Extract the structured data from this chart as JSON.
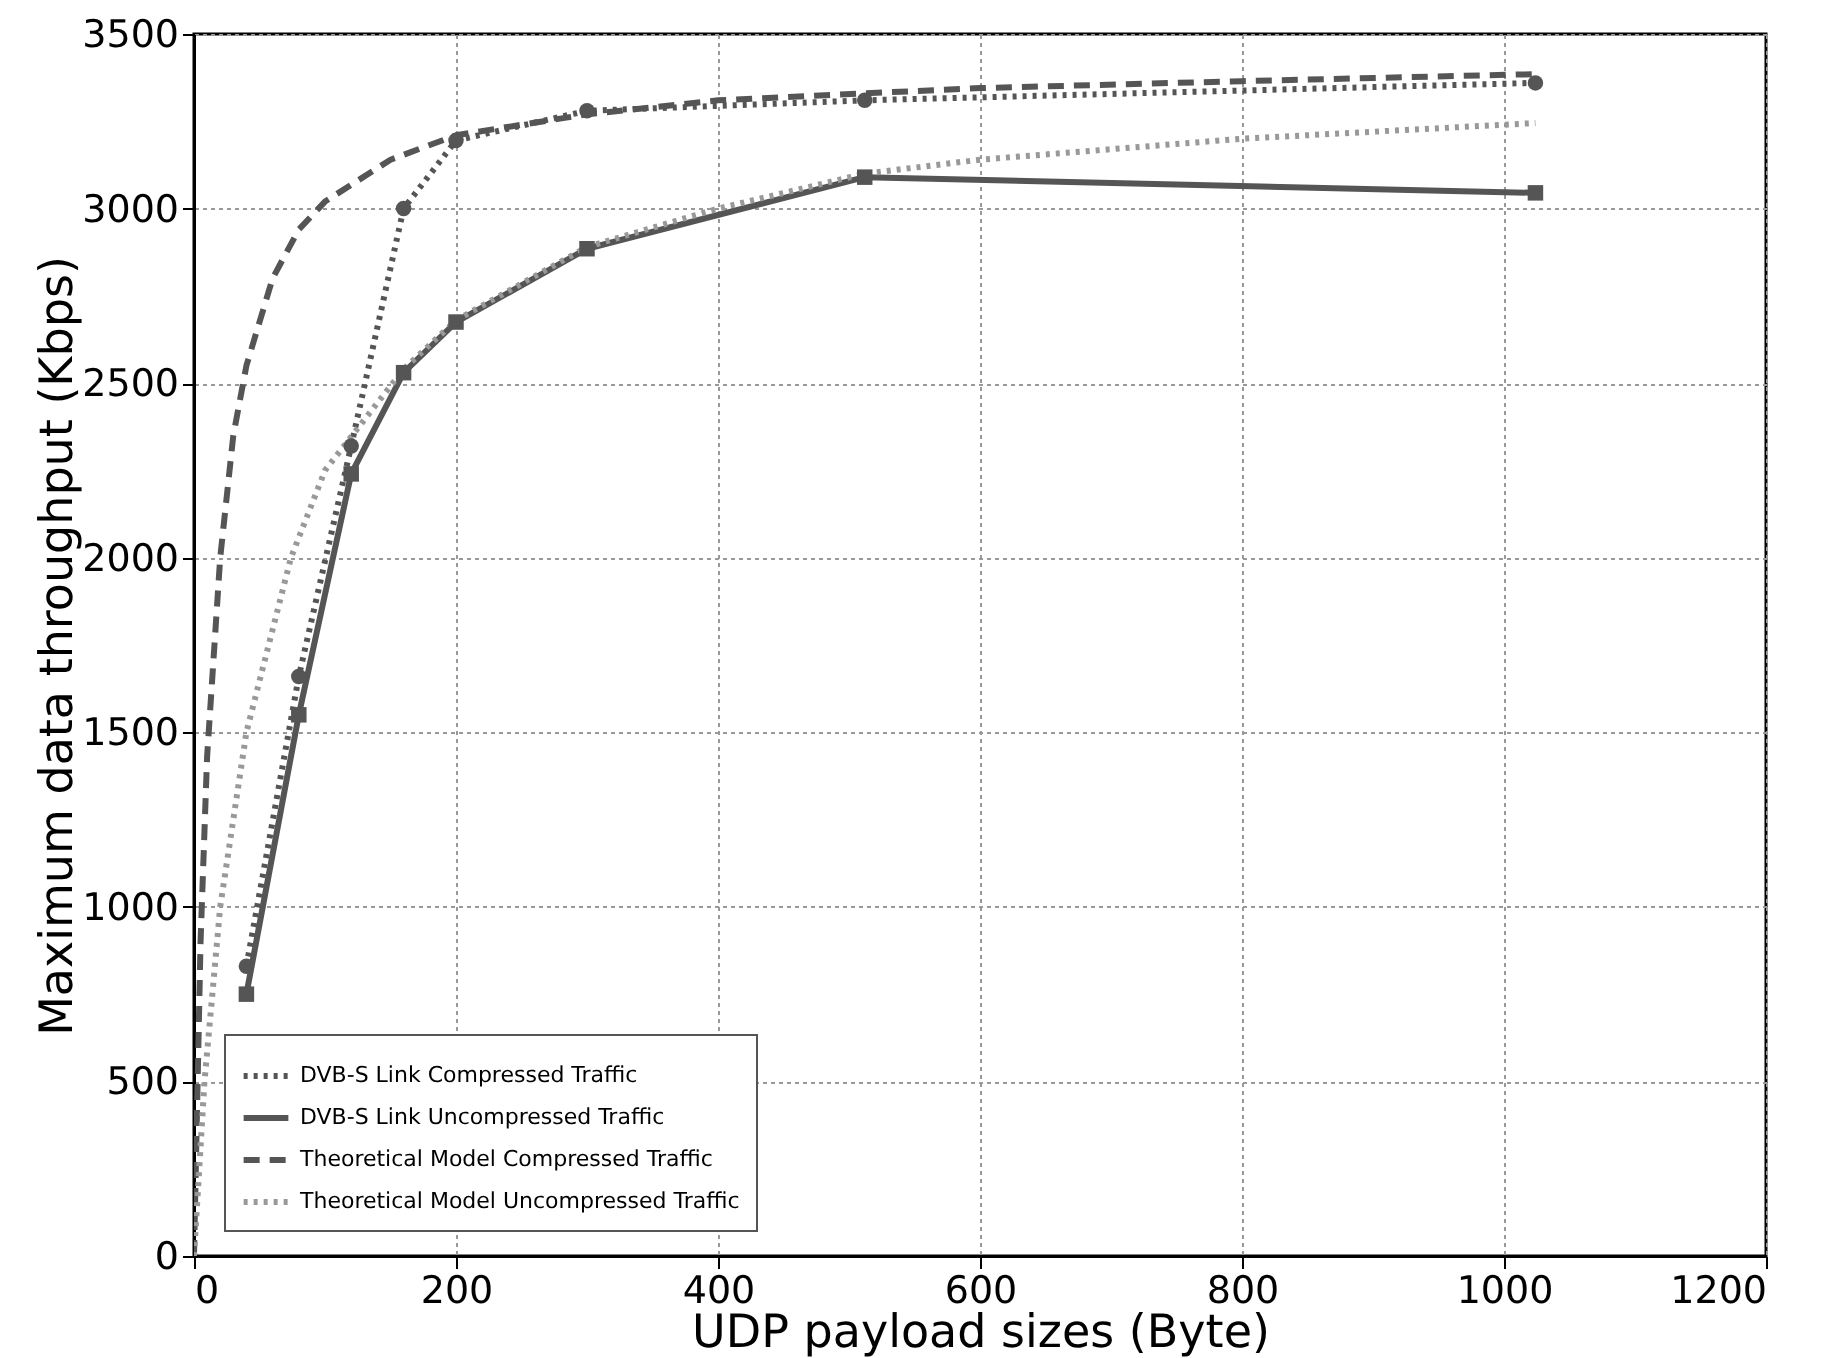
{
  "chart_data": {
    "type": "line",
    "xlabel": "UDP payload sizes (Byte)",
    "ylabel": "Maximum data throughput (Kbps)",
    "xlim": [
      0,
      1200
    ],
    "xticks": [
      0,
      200,
      400,
      600,
      800,
      1000,
      1200
    ],
    "ylim": [
      0,
      3500
    ],
    "yticks": [
      0,
      500,
      1000,
      1500,
      2000,
      2500,
      3000,
      3500
    ],
    "grid": true,
    "legend": "bottom left",
    "series": [
      {
        "name": "DVB-S Link Compressed Traffic",
        "color": "#555555",
        "line_style": "dotted",
        "marker": "circle",
        "x": [
          40,
          80,
          120,
          160,
          200,
          300,
          512,
          1024
        ],
        "values": [
          830,
          1660,
          2320,
          3000,
          3195,
          3280,
          3310,
          3360
        ]
      },
      {
        "name": "DVB-S Link Uncompressed Traffic",
        "color": "#555555",
        "line_style": "solid",
        "marker": "square",
        "x": [
          40,
          80,
          120,
          160,
          200,
          300,
          512,
          1024
        ],
        "values": [
          750,
          1550,
          2240,
          2530,
          2675,
          2885,
          3090,
          3045
        ]
      },
      {
        "name": "Theoretical Model Compressed Traffic",
        "color": "#555555",
        "line_style": "dashed",
        "marker": "none",
        "x": [
          0,
          5,
          10,
          20,
          30,
          40,
          60,
          80,
          100,
          150,
          200,
          300,
          400,
          512,
          600,
          800,
          1024
        ],
        "values": [
          0,
          900,
          1430,
          2000,
          2350,
          2550,
          2800,
          2940,
          3020,
          3140,
          3210,
          3270,
          3310,
          3330,
          3345,
          3365,
          3385
        ]
      },
      {
        "name": "Theoretical Model Uncompressed Traffic",
        "color": "#999999",
        "line_style": "dotted",
        "marker": "none",
        "x": [
          0,
          8,
          20,
          40,
          74,
          100,
          160,
          200,
          300,
          400,
          512,
          600,
          800,
          1024
        ],
        "values": [
          0,
          500,
          1000,
          1500,
          2000,
          2250,
          2540,
          2680,
          2890,
          3000,
          3100,
          3140,
          3200,
          3245
        ]
      }
    ]
  }
}
